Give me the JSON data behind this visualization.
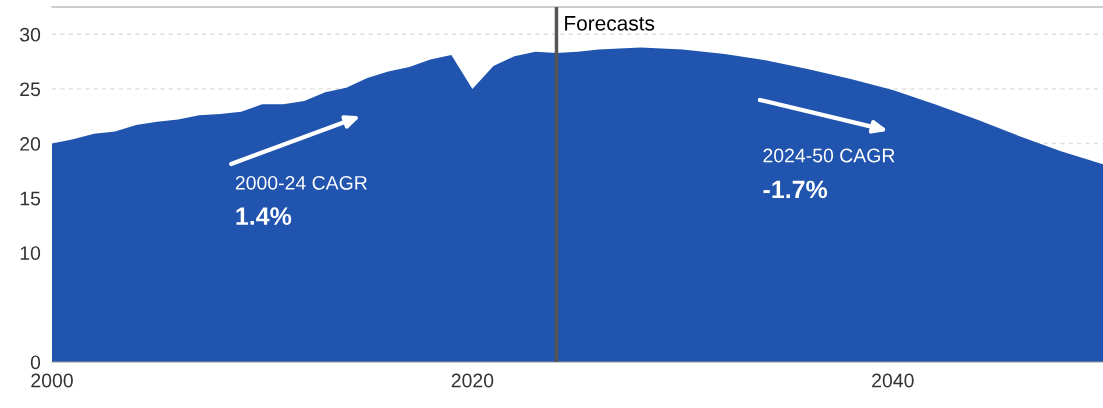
{
  "chart_data": {
    "type": "area",
    "x": [
      2000,
      2001,
      2002,
      2003,
      2004,
      2005,
      2006,
      2007,
      2008,
      2009,
      2010,
      2011,
      2012,
      2013,
      2014,
      2015,
      2016,
      2017,
      2018,
      2019,
      2020,
      2021,
      2022,
      2023,
      2024,
      2025,
      2026,
      2027,
      2028,
      2029,
      2030,
      2032,
      2034,
      2036,
      2038,
      2040,
      2042,
      2044,
      2046,
      2048,
      2050
    ],
    "series": [
      {
        "color": "#2054ae",
        "values": [
          20.0,
          20.4,
          20.9,
          21.1,
          21.7,
          22.0,
          22.2,
          22.6,
          22.7,
          22.9,
          23.6,
          23.6,
          23.9,
          24.7,
          25.1,
          26.0,
          26.6,
          27.0,
          27.7,
          28.1,
          25.0,
          27.1,
          28.0,
          28.4,
          28.3,
          28.4,
          28.6,
          28.7,
          28.8,
          28.7,
          28.6,
          28.2,
          27.6,
          26.8,
          25.9,
          24.9,
          23.6,
          22.2,
          20.7,
          19.3,
          18.1
        ]
      }
    ],
    "xlim": [
      2000,
      2050
    ],
    "xticks": [
      2000,
      2020,
      2040
    ],
    "ylim": [
      0,
      32.5
    ],
    "yticks": [
      0,
      10,
      15,
      20,
      25,
      30
    ],
    "grid": "y",
    "ref_lines": [
      {
        "axis": "x",
        "value": 2024,
        "label": "Forecasts",
        "color": "#555555"
      }
    ],
    "annotations": [
      "2000-24 CAGR",
      "1.4%",
      "2024-50 CAGR",
      "-1.7%"
    ]
  }
}
